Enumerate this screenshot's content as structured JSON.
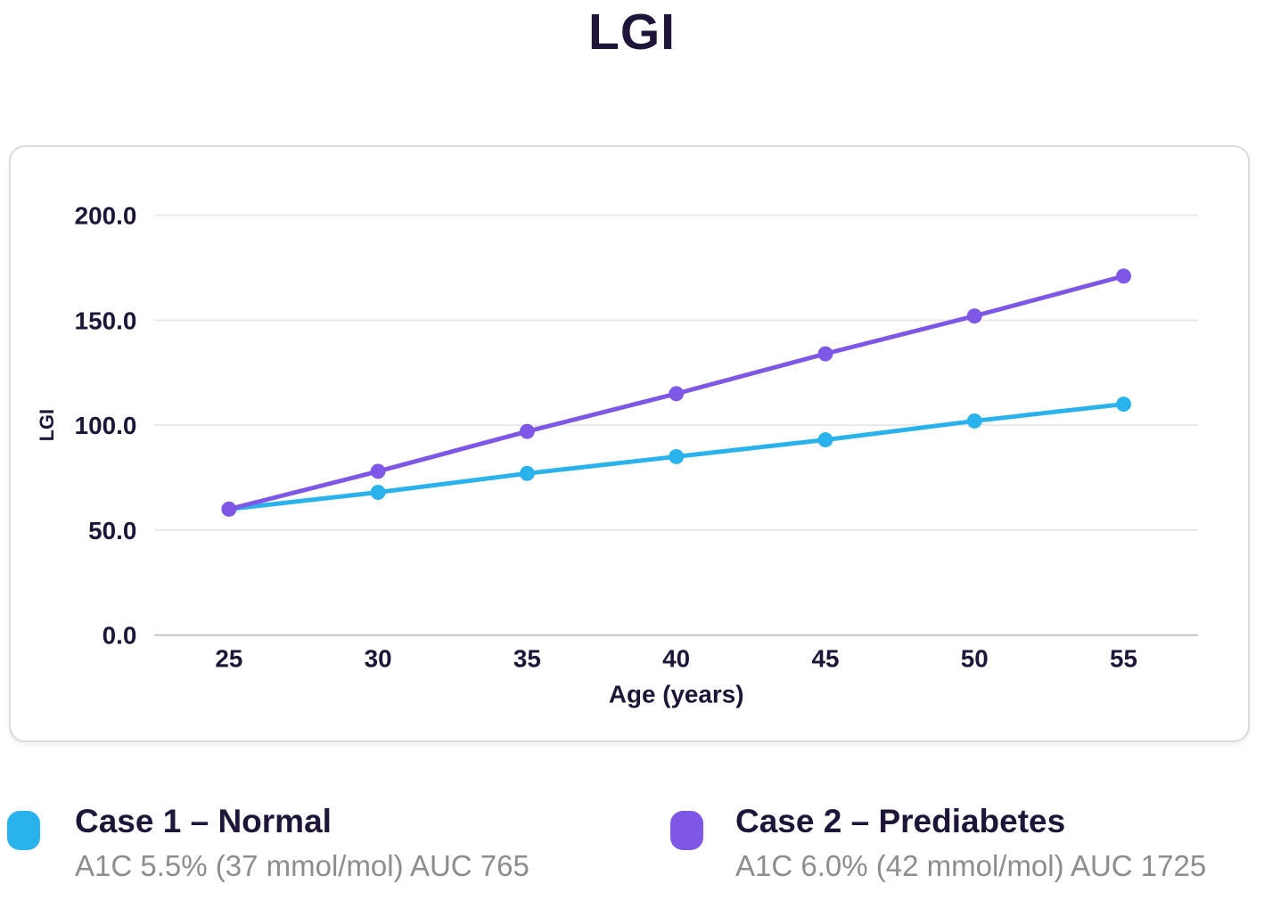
{
  "title": "LGI",
  "chart_data": {
    "type": "line",
    "title": "LGI",
    "x": [
      25,
      30,
      35,
      40,
      45,
      50,
      55
    ],
    "xlabel": "Age (years)",
    "ylabel": "LGI",
    "ylim": [
      0,
      200
    ],
    "yticks": [
      0,
      50,
      100,
      150,
      200
    ],
    "ytick_labels": [
      "0.0",
      "50.0",
      "100.0",
      "150.0",
      "200.0"
    ],
    "grid": true,
    "legend_position": "bottom",
    "series": [
      {
        "name": "Case 1 – Normal",
        "subtitle": "A1C 5.5% (37 mmol/mol) AUC 765",
        "color": "#29b2ec",
        "values": [
          60,
          68,
          77,
          85,
          93,
          102,
          110
        ]
      },
      {
        "name": "Case 2 – Prediabetes",
        "subtitle": "A1C 6.0% (42 mmol/mol) AUC 1725",
        "color": "#7e57e6",
        "values": [
          60,
          78,
          97,
          115,
          134,
          152,
          171
        ]
      }
    ]
  },
  "colors": {
    "text_dark": "#1e1538",
    "text_gray": "#8d8d8d",
    "gridline": "#e9e9e9",
    "axis_line": "#c2c2c2",
    "card_border": "#d9d9de"
  }
}
